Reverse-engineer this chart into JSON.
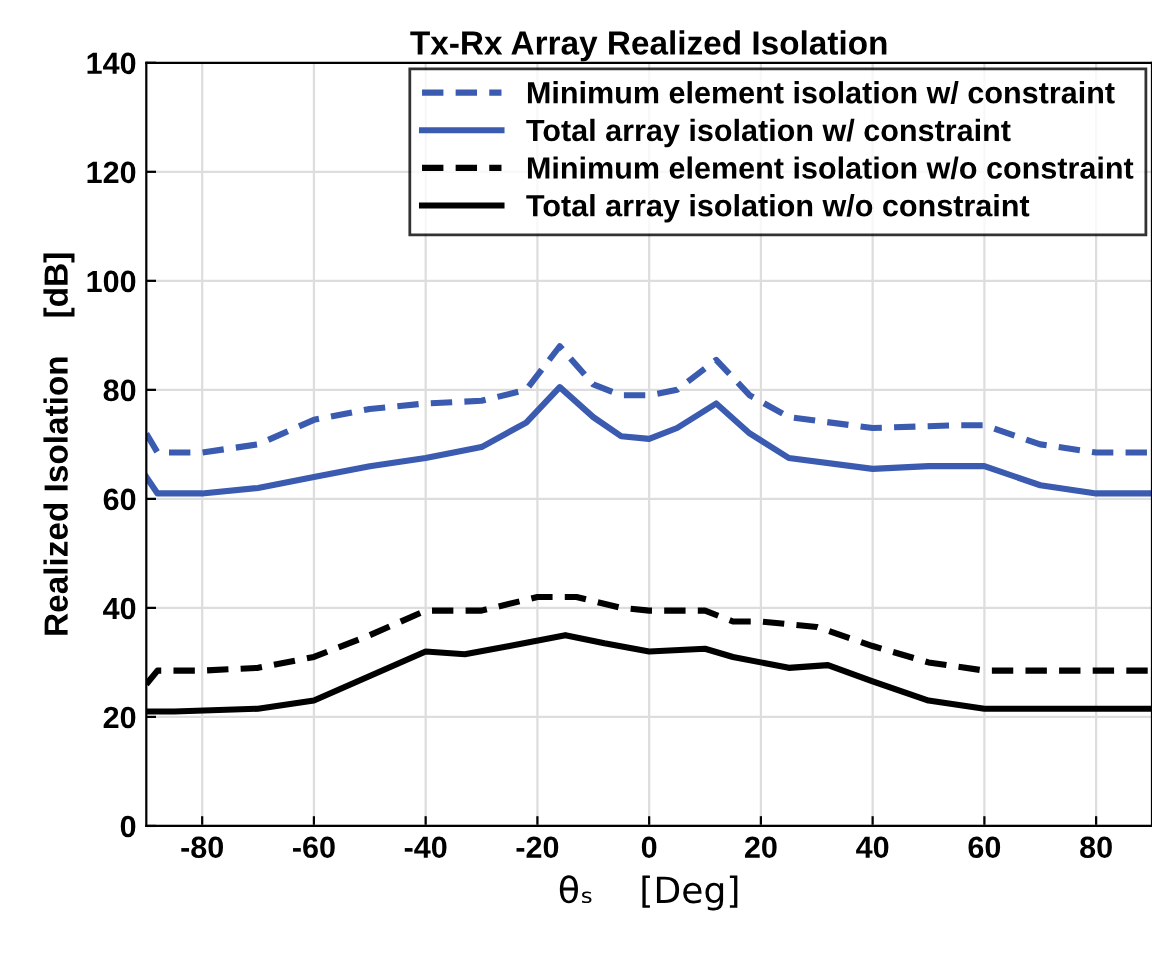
{
  "chart_data": {
    "type": "line",
    "title": "Tx-Rx Array Realized Isolation",
    "xlabel": "θₛ    [Deg]",
    "ylabel": "Realized Isolation    [dB]",
    "xlim": [
      -90,
      90
    ],
    "xticks": [
      -80,
      -60,
      -40,
      -20,
      0,
      20,
      40,
      60,
      80
    ],
    "ylim": [
      0,
      140
    ],
    "yticks": [
      0,
      20,
      40,
      60,
      80,
      100,
      120,
      140
    ],
    "grid": true,
    "legend": "top right",
    "series": [
      {
        "name": "Minimum element isolation w/ constraint",
        "color": "#3a5bb0",
        "line_style": "dashed",
        "x": [
          -90,
          -88,
          -80,
          -70,
          -60,
          -50,
          -40,
          -30,
          -22,
          -16,
          -10,
          -5,
          0,
          5,
          12,
          18,
          25,
          40,
          55,
          60,
          70,
          80,
          90
        ],
        "values": [
          72,
          68.5,
          68.5,
          70,
          74.5,
          76.5,
          77.5,
          78,
          80,
          88,
          81,
          79,
          79,
          80,
          85.5,
          79,
          75,
          73,
          73.5,
          73.5,
          70,
          68.5,
          68.5
        ]
      },
      {
        "name": "Total array isolation w/ constraint",
        "color": "#3a5bb0",
        "line_style": "solid",
        "x": [
          -90,
          -88,
          -80,
          -70,
          -60,
          -50,
          -40,
          -30,
          -22,
          -16,
          -10,
          -5,
          0,
          5,
          12,
          18,
          25,
          40,
          50,
          60,
          70,
          80,
          90
        ],
        "values": [
          64,
          61,
          61,
          62,
          64,
          66,
          67.5,
          69.5,
          74,
          80.5,
          75,
          71.5,
          71,
          73,
          77.5,
          72,
          67.5,
          65.5,
          66,
          66,
          62.5,
          61,
          61
        ]
      },
      {
        "name": "Minimum element isolation w/o constraint",
        "color": "#000000",
        "line_style": "dashed",
        "x": [
          -90,
          -88,
          -80,
          -70,
          -60,
          -50,
          -40,
          -30,
          -20,
          -13,
          -5,
          0,
          10,
          15,
          20,
          30,
          40,
          50,
          60,
          90
        ],
        "values": [
          26,
          28.5,
          28.5,
          29,
          31,
          35,
          39.5,
          39.5,
          42,
          42,
          40,
          39.5,
          39.5,
          37.5,
          37.5,
          36.5,
          33,
          30,
          28.5,
          28.5
        ]
      },
      {
        "name": "Total array isolation w/o constraint",
        "color": "#000000",
        "line_style": "solid",
        "x": [
          -90,
          -85,
          -70,
          -60,
          -50,
          -40,
          -33,
          -25,
          -15,
          -8,
          0,
          10,
          15,
          25,
          32,
          40,
          50,
          60,
          90
        ],
        "values": [
          21,
          21,
          21.5,
          23,
          27.5,
          32,
          31.5,
          33,
          35,
          33.5,
          32,
          32.5,
          31,
          29,
          29.5,
          26.5,
          23,
          21.5,
          21.5
        ]
      }
    ]
  }
}
